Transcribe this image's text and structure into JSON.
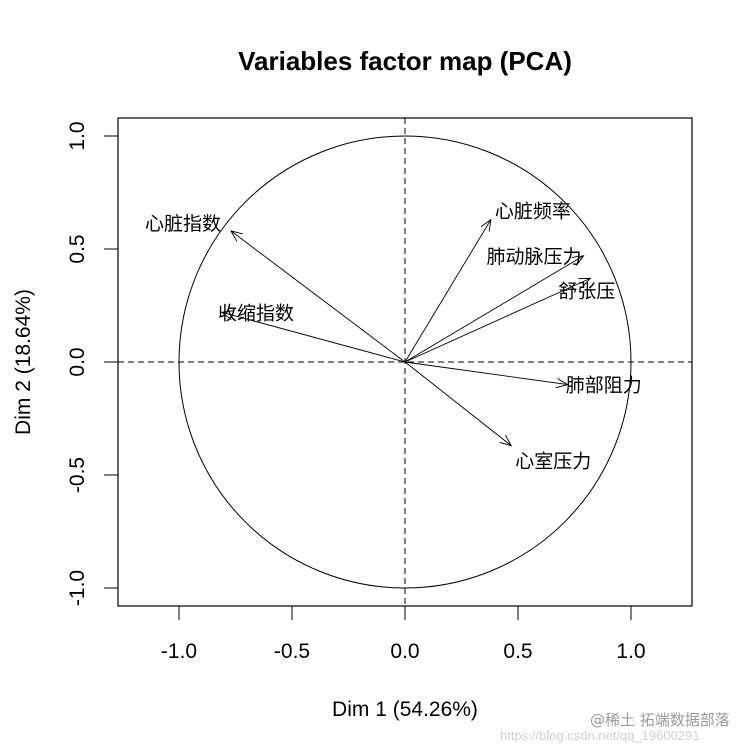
{
  "chart_data": {
    "type": "scatter",
    "subtype": "pca-variables-correlation-circle",
    "title": "Variables factor map (PCA)",
    "xlabel": "Dim 1 (54.26%)",
    "ylabel": "Dim 2 (18.64%)",
    "xlim": [
      -1.27,
      1.27
    ],
    "ylim": [
      -1.08,
      1.08
    ],
    "xticks": [
      -1.0,
      -0.5,
      0.0,
      0.5,
      1.0
    ],
    "yticks": [
      -1.0,
      -0.5,
      0.0,
      0.5,
      1.0
    ],
    "xtick_labels": [
      "-1.0",
      "-0.5",
      "0.0",
      "0.5",
      "1.0"
    ],
    "ytick_labels": [
      "-1.0",
      "-0.5",
      "0.0",
      "0.5",
      "1.0"
    ],
    "unit_circle": true,
    "reference_lines": {
      "x": 0,
      "y": 0,
      "style": "dashed"
    },
    "grid": false,
    "variables": [
      {
        "name": "心脏指数",
        "x": -0.77,
        "y": 0.58
      },
      {
        "name": "收缩指数",
        "x": -0.81,
        "y": 0.22
      },
      {
        "name": "心脏频率",
        "x": 0.38,
        "y": 0.63
      },
      {
        "name": "肺动脉压力",
        "x": 0.79,
        "y": 0.47
      },
      {
        "name": "舒张压",
        "x": 0.82,
        "y": 0.37
      },
      {
        "name": "肺部阻力",
        "x": 0.72,
        "y": -0.1
      },
      {
        "name": "心室压力",
        "x": 0.47,
        "y": -0.37
      }
    ]
  },
  "watermark": {
    "line1": "@稀土 拓端数据部落",
    "line2": "https://blog.csdn.net/qq_19600291"
  },
  "colors": {
    "foreground": "#000000",
    "background": "#ffffff"
  }
}
